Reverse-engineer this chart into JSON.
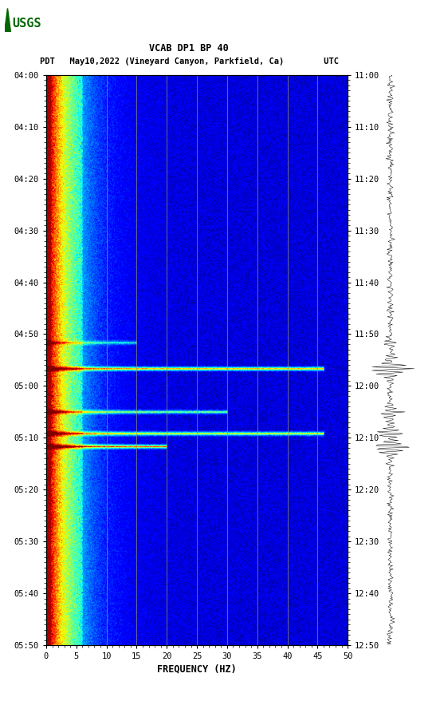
{
  "title_line1": "VCAB DP1 BP 40",
  "title_line2": "PDT   May10,2022 (Vineyard Canyon, Parkfield, Ca)        UTC",
  "xlabel": "FREQUENCY (HZ)",
  "freq_min": 0,
  "freq_max": 50,
  "freq_ticks": [
    0,
    5,
    10,
    15,
    20,
    25,
    30,
    35,
    40,
    45,
    50
  ],
  "time_left_labels": [
    "04:00",
    "04:10",
    "04:20",
    "04:30",
    "04:40",
    "04:50",
    "05:00",
    "05:10",
    "05:20",
    "05:30",
    "05:40",
    "05:50"
  ],
  "time_right_labels": [
    "11:00",
    "11:10",
    "11:20",
    "11:30",
    "11:40",
    "11:50",
    "12:00",
    "12:10",
    "12:20",
    "12:30",
    "12:40",
    "12:50"
  ],
  "n_time_steps": 660,
  "n_freq_steps": 500,
  "vert_lines_freq": [
    10,
    15,
    20,
    25,
    30,
    35,
    40,
    45
  ],
  "colormap": "jet",
  "background_color": "#ffffff",
  "font_family": "monospace",
  "event_times": [
    310,
    340,
    390,
    415,
    430
  ],
  "event_amps": [
    0.35,
    0.85,
    0.55,
    0.75,
    0.9
  ],
  "event_freq_extents": [
    150,
    460,
    300,
    460,
    200
  ]
}
